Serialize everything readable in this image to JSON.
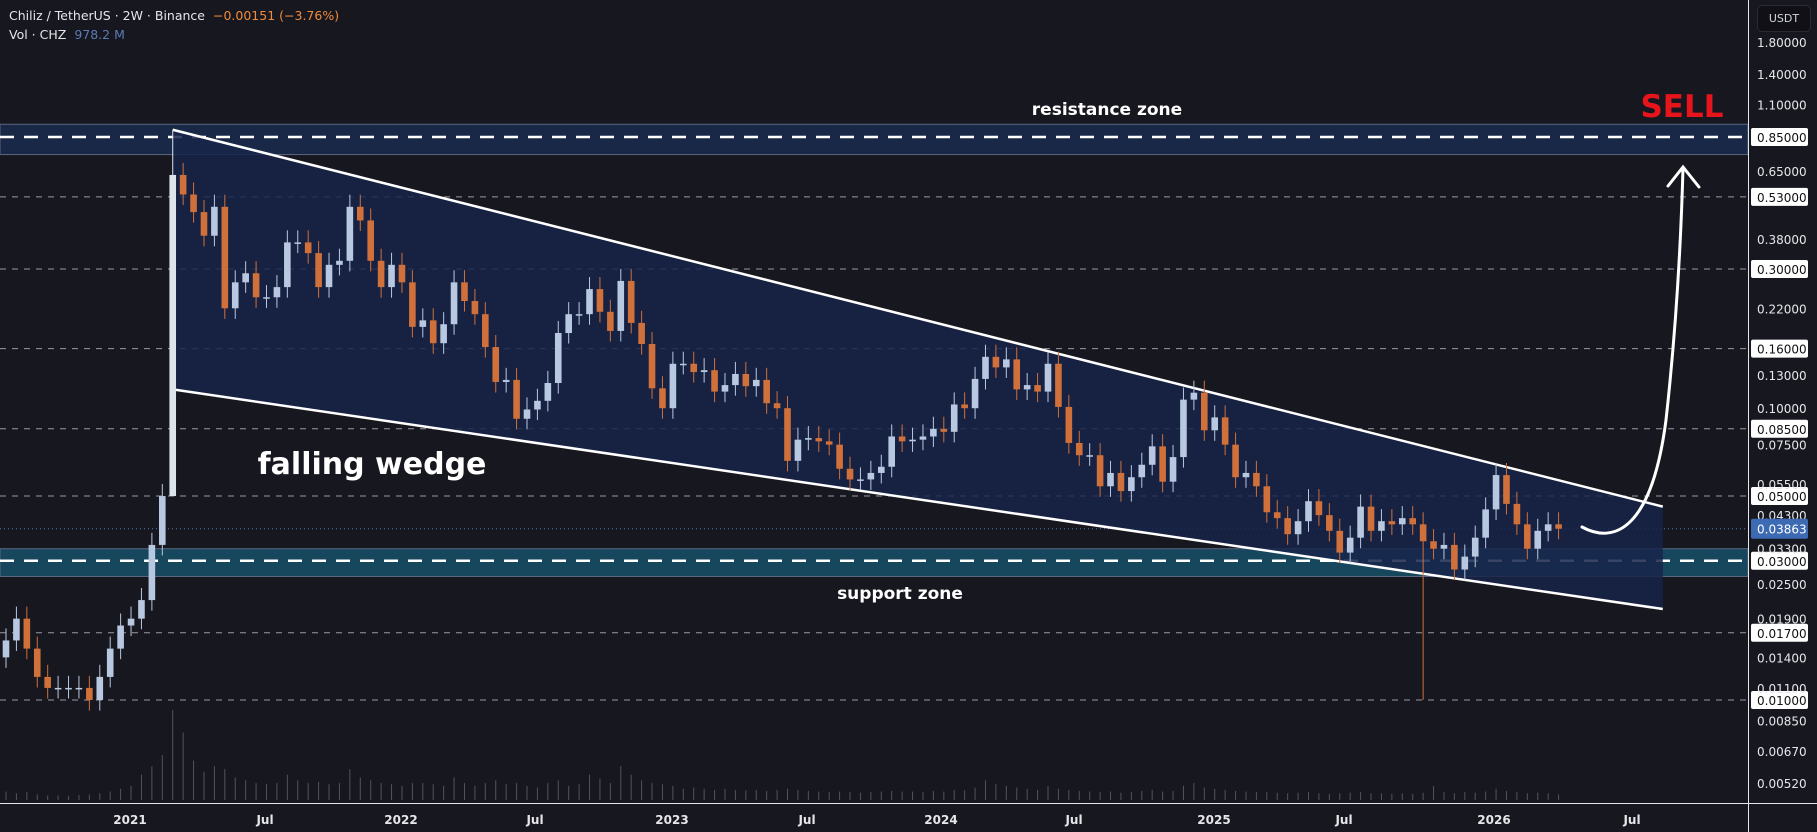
{
  "header": {
    "symbol_line": "Chiliz / TetherUS · 2W · Binance",
    "change": "−0.00151 (−3.76%)",
    "vol_label": "Vol · CHZ",
    "vol_value": "978.2 M"
  },
  "currency_button": "USDT",
  "colors": {
    "background": "#17171f",
    "up": "#b8c8e0",
    "down": "#d0703a",
    "wedge_fill": "#17254a",
    "resistance_fill": "#1a2848",
    "support_fill": "#17475c",
    "sell": "#e8141c",
    "last_price": "#3d6bb3"
  },
  "annotations": {
    "resistance": "resistance zone",
    "support": "support zone",
    "pattern": "falling wedge",
    "signal": "SELL"
  },
  "chart_data": {
    "type": "candlestick",
    "title": "Chiliz / TetherUS · 2W · Binance",
    "interval": "2W",
    "yscale": "log",
    "ylim": [
      0.0045,
      2.0
    ],
    "time_labels": [
      "2021",
      "Jul",
      "2022",
      "Jul",
      "2023",
      "Jul",
      "2024",
      "Jul",
      "2025",
      "Jul",
      "2026",
      "Jul"
    ],
    "closes": [
      0.016,
      0.019,
      0.015,
      0.012,
      0.011,
      0.011,
      0.011,
      0.011,
      0.01,
      0.012,
      0.015,
      0.018,
      0.019,
      0.022,
      0.034,
      0.05,
      0.63,
      0.54,
      0.47,
      0.39,
      0.49,
      0.22,
      0.27,
      0.29,
      0.24,
      0.24,
      0.26,
      0.37,
      0.37,
      0.34,
      0.26,
      0.31,
      0.32,
      0.49,
      0.44,
      0.32,
      0.26,
      0.31,
      0.27,
      0.19,
      0.2,
      0.167,
      0.194,
      0.27,
      0.233,
      0.21,
      0.162,
      0.123,
      0.125,
      0.092,
      0.099,
      0.106,
      0.122,
      0.181,
      0.21,
      0.21,
      0.256,
      0.214,
      0.184,
      0.273,
      0.196,
      0.166,
      0.117,
      0.1,
      0.142,
      0.142,
      0.133,
      0.135,
      0.114,
      0.12,
      0.131,
      0.119,
      0.125,
      0.104,
      0.1,
      0.066,
      0.078,
      0.079,
      0.077,
      0.075,
      0.062,
      0.057,
      0.057,
      0.06,
      0.063,
      0.08,
      0.077,
      0.078,
      0.08,
      0.085,
      0.083,
      0.103,
      0.1,
      0.126,
      0.15,
      0.138,
      0.147,
      0.116,
      0.12,
      0.114,
      0.142,
      0.101,
      0.076,
      0.069,
      0.069,
      0.054,
      0.06,
      0.052,
      0.058,
      0.064,
      0.074,
      0.056,
      0.068,
      0.107,
      0.113,
      0.084,
      0.093,
      0.075,
      0.058,
      0.06,
      0.054,
      0.044,
      0.042,
      0.037,
      0.041,
      0.048,
      0.043,
      0.038,
      0.032,
      0.036,
      0.046,
      0.038,
      0.041,
      0.04,
      0.042,
      0.04,
      0.035,
      0.033,
      0.034,
      0.028,
      0.031,
      0.036,
      0.045,
      0.059,
      0.047,
      0.04,
      0.033,
      0.038,
      0.04,
      0.03863
    ],
    "first_open": 0.014,
    "wick_overrides": [
      {
        "index": 16,
        "high": 0.9,
        "low": 0.05
      },
      {
        "index": 136,
        "low": 0.01
      }
    ],
    "volume_relative": [
      15,
      12,
      14,
      10,
      8,
      8,
      7,
      9,
      10,
      12,
      15,
      20,
      25,
      45,
      60,
      80,
      160,
      120,
      70,
      50,
      60,
      55,
      40,
      35,
      30,
      28,
      30,
      45,
      35,
      30,
      32,
      28,
      30,
      55,
      40,
      35,
      30,
      28,
      25,
      30,
      30,
      28,
      25,
      40,
      30,
      25,
      30,
      35,
      28,
      30,
      25,
      22,
      30,
      35,
      25,
      28,
      45,
      38,
      30,
      60,
      45,
      35,
      30,
      28,
      25,
      20,
      22,
      20,
      18,
      20,
      18,
      17,
      18,
      16,
      18,
      20,
      18,
      16,
      15,
      14,
      15,
      14,
      13,
      14,
      15,
      16,
      15,
      15,
      14,
      16,
      15,
      18,
      17,
      22,
      35,
      28,
      25,
      22,
      20,
      18,
      25,
      20,
      18,
      16,
      15,
      14,
      15,
      13,
      14,
      16,
      18,
      15,
      16,
      25,
      30,
      22,
      20,
      18,
      16,
      15,
      14,
      14,
      13,
      12,
      13,
      14,
      12,
      11,
      12,
      13,
      14,
      12,
      12,
      11,
      12,
      11,
      13,
      25,
      14,
      12,
      14,
      13,
      15,
      20,
      16,
      14,
      12,
      13,
      12,
      10
    ],
    "price_axis_labels": [
      "1.80000",
      "1.40000",
      "1.10000",
      "0.65000",
      "0.38000",
      "0.22000",
      "0.13000",
      "0.10000",
      "0.07500",
      "0.05500",
      "0.04300",
      "0.03300",
      "0.02500",
      "0.01900",
      "0.01400",
      "0.01100",
      "0.00850",
      "0.00670",
      "0.00520"
    ],
    "horizontal_levels": [
      "0.85000",
      "0.53000",
      "0.30000",
      "0.16000",
      "0.08500",
      "0.05000",
      "0.03000",
      "0.01700",
      "0.01000"
    ],
    "last_price": "0.03863",
    "resistance_zone": [
      0.74,
      0.94
    ],
    "support_zone": [
      0.0265,
      0.033
    ],
    "wedge": {
      "upper": [
        {
          "index": 16,
          "price": 0.9
        },
        {
          "index": 159,
          "price": 0.046
        }
      ],
      "lower": [
        {
          "index": 16,
          "price": 0.116
        },
        {
          "index": 159,
          "price": 0.0205
        }
      ]
    }
  }
}
